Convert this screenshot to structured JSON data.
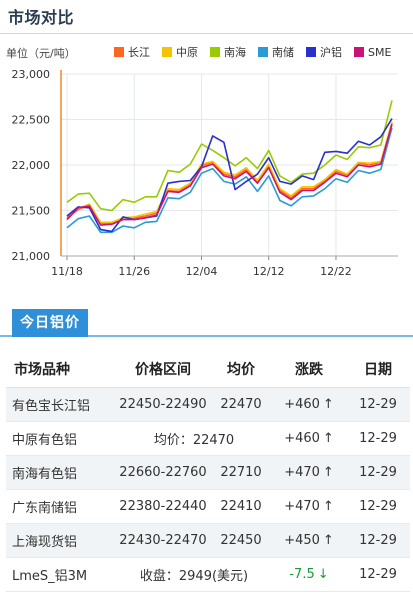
{
  "page": {
    "title": "市场对比"
  },
  "chart_data": {
    "type": "line",
    "unit_label": "单位（元/吨）",
    "ylim": [
      21000,
      23000
    ],
    "yticks": [
      "21,000",
      "21,500",
      "22,000",
      "22,500",
      "23,000"
    ],
    "ytick_values": [
      21000,
      21500,
      22000,
      22500,
      23000
    ],
    "xtick_labels": [
      "11/18",
      "11/26",
      "12/04",
      "12/12",
      "12/22"
    ],
    "xtick_index": [
      0,
      6,
      12,
      18,
      24
    ],
    "grid": true,
    "legend_position": "top",
    "series": [
      {
        "name": "长江",
        "color": "#ff6620",
        "values": [
          21420,
          21510,
          21560,
          21360,
          21360,
          21420,
          21420,
          21440,
          21470,
          21720,
          21710,
          21790,
          21990,
          22030,
          21900,
          21870,
          21950,
          21820,
          21990,
          21720,
          21640,
          21740,
          21740,
          21830,
          21930,
          21890,
          22020,
          22000,
          22030,
          22470
        ]
      },
      {
        "name": "中原",
        "color": "#f5c400",
        "values": [
          21440,
          21520,
          21570,
          21370,
          21370,
          21420,
          21430,
          21460,
          21490,
          21740,
          21730,
          21800,
          22010,
          22040,
          21920,
          21890,
          21970,
          21830,
          22010,
          21740,
          21660,
          21760,
          21760,
          21840,
          21950,
          21900,
          22030,
          22020,
          22040,
          22470
        ]
      },
      {
        "name": "南海",
        "color": "#99cc00",
        "values": [
          21590,
          21680,
          21690,
          21520,
          21500,
          21620,
          21590,
          21650,
          21650,
          21940,
          21920,
          22010,
          22230,
          22160,
          22080,
          21990,
          22080,
          21960,
          22160,
          21880,
          21810,
          21900,
          21910,
          22000,
          22110,
          22060,
          22200,
          22190,
          22220,
          22710
        ]
      },
      {
        "name": "南储",
        "color": "#2a9bd6",
        "values": [
          21310,
          21410,
          21440,
          21260,
          21260,
          21330,
          21310,
          21370,
          21380,
          21640,
          21630,
          21700,
          21910,
          21960,
          21820,
          21790,
          21870,
          21710,
          21880,
          21610,
          21550,
          21650,
          21660,
          21740,
          21850,
          21810,
          21940,
          21910,
          21950,
          22410
        ]
      },
      {
        "name": "沪铝",
        "color": "#2a2fcf",
        "values": [
          21440,
          21540,
          21530,
          21290,
          21270,
          21430,
          21400,
          21420,
          21440,
          21800,
          21820,
          21830,
          21980,
          22320,
          22250,
          21730,
          21820,
          21900,
          22080,
          21820,
          21790,
          21880,
          21840,
          22140,
          22150,
          22130,
          22260,
          22220,
          22310,
          22510
        ]
      },
      {
        "name": "SME",
        "color": "#cc1177",
        "values": [
          21400,
          21530,
          21550,
          21340,
          21350,
          21400,
          21400,
          21420,
          21450,
          21710,
          21700,
          21770,
          21970,
          22010,
          21880,
          21850,
          21930,
          21800,
          21970,
          21700,
          21620,
          21720,
          21720,
          21810,
          21910,
          21870,
          22000,
          21980,
          22010,
          22450
        ]
      }
    ]
  },
  "section": {
    "tab_label": "今日铝价"
  },
  "table": {
    "headers": [
      "市场品种",
      "价格区间",
      "均价",
      "涨跌",
      "日期"
    ],
    "rows": [
      {
        "name": "有色宝长江铝",
        "range": "22450-22490",
        "avg": "22470",
        "change": "+460",
        "arrow": "↑",
        "date": "12-29"
      },
      {
        "name": "中原有色铝",
        "merged": "均价：22470",
        "change": "+460",
        "arrow": "↑",
        "date": "12-29"
      },
      {
        "name": "南海有色铝",
        "range": "22660-22760",
        "avg": "22710",
        "change": "+470",
        "arrow": "↑",
        "date": "12-29"
      },
      {
        "name": "广东南储铝",
        "range": "22380-22440",
        "avg": "22410",
        "change": "+470",
        "arrow": "↑",
        "date": "12-29"
      },
      {
        "name": "上海现货铝",
        "range": "22430-22470",
        "avg": "22450",
        "change": "+450",
        "arrow": "↑",
        "date": "12-29"
      },
      {
        "name": "LmeS_铝3M",
        "merged": "收盘：2949(美元)",
        "change": "-7.5",
        "arrow": "↓",
        "date": "12-29",
        "down": true
      }
    ]
  }
}
